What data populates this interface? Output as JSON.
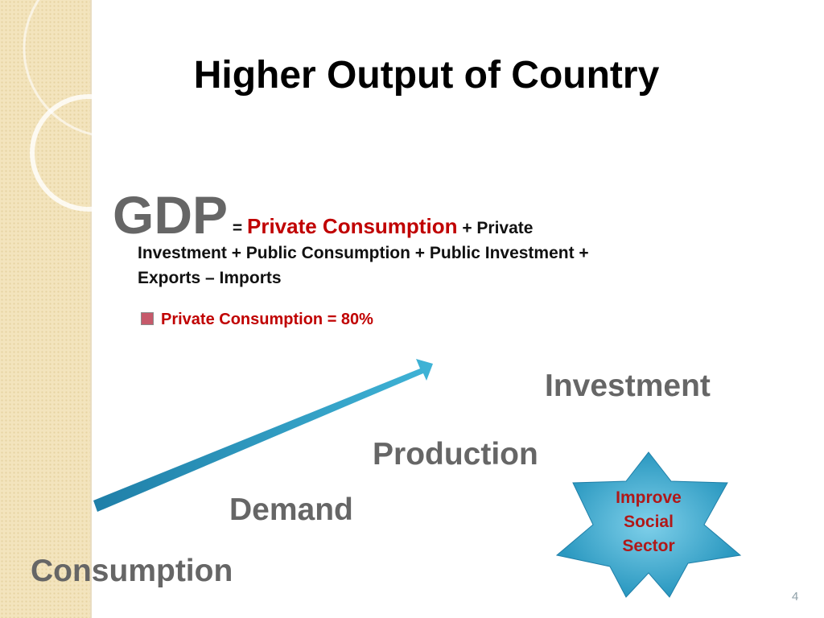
{
  "slide": {
    "title": "Higher Output of Country",
    "equation": {
      "gdp": "GDP",
      "equals": "=",
      "highlight": "Private Consumption",
      "rest_lines": [
        "+ Private",
        "Investment + Public Consumption + Public Investment +",
        "Exports – Imports"
      ]
    },
    "bullet": "Private Consumption = 80%",
    "steps": [
      "Consumption",
      "Demand",
      "Production",
      "Investment"
    ],
    "star_lines": [
      "Improve",
      "Social",
      "Sector"
    ],
    "page_number": "4"
  }
}
